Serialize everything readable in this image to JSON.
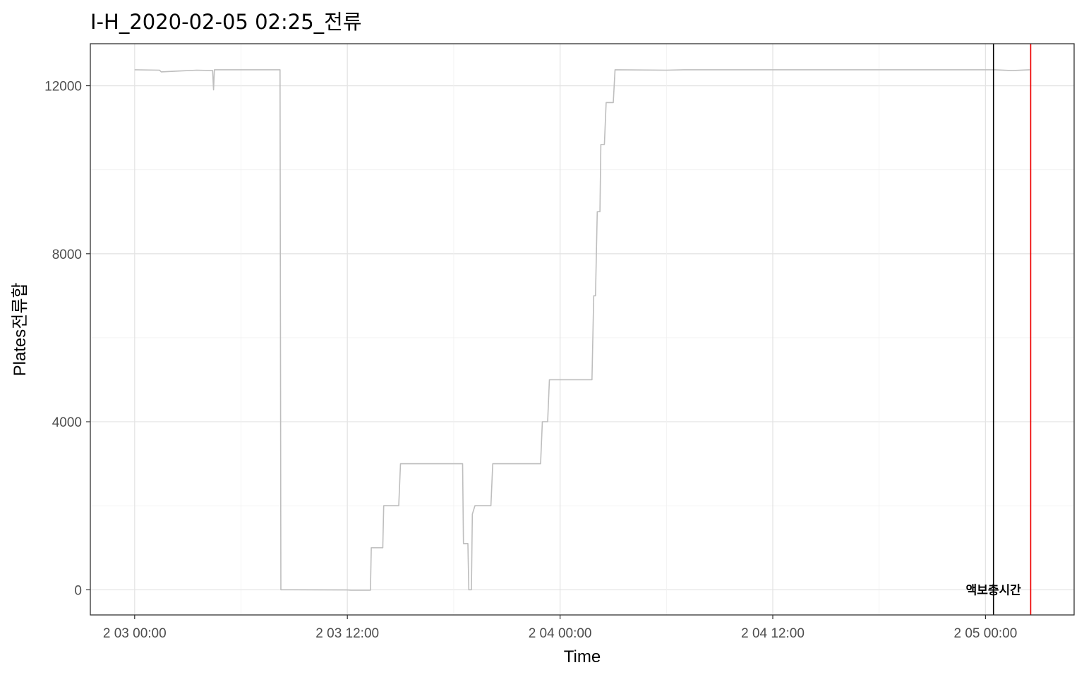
{
  "chart_data": {
    "type": "line",
    "title": "I-H_2020-02-05 02:25_전류",
    "xlabel": "Time",
    "ylabel": "Plates전류합",
    "x_tick_labels": [
      {
        "value": 0,
        "label": "2 03 00:00"
      },
      {
        "value": 12,
        "label": "2 03 12:00"
      },
      {
        "value": 24,
        "label": "2 04 00:00"
      },
      {
        "value": 36,
        "label": "2 04 12:00"
      },
      {
        "value": 48,
        "label": "2 05 00:00"
      }
    ],
    "y_ticks": [
      0,
      4000,
      8000,
      12000
    ],
    "xlim": [
      -2.5,
      53.0
    ],
    "ylim": [
      -600,
      13000
    ],
    "x_unit": "hours since 2 03 00:00",
    "grid": true,
    "series": [
      {
        "color": "#bebebe",
        "points": [
          [
            0,
            12380
          ],
          [
            1.4,
            12370
          ],
          [
            1.5,
            12330
          ],
          [
            2.5,
            12350
          ],
          [
            3.5,
            12370
          ],
          [
            4.4,
            12360
          ],
          [
            4.45,
            11900
          ],
          [
            4.5,
            12380
          ],
          [
            6.0,
            12380
          ],
          [
            8.2,
            12380
          ],
          [
            8.25,
            0
          ],
          [
            9.0,
            0
          ],
          [
            12.0,
            -5
          ],
          [
            12.2,
            -10
          ],
          [
            13.3,
            -10
          ],
          [
            13.35,
            1000
          ],
          [
            14.0,
            1000
          ],
          [
            14.05,
            2000
          ],
          [
            14.9,
            2000
          ],
          [
            15.0,
            3000
          ],
          [
            18.5,
            3000
          ],
          [
            18.55,
            1100
          ],
          [
            18.8,
            1100
          ],
          [
            18.85,
            0
          ],
          [
            19.0,
            0
          ],
          [
            19.05,
            1800
          ],
          [
            19.2,
            2000
          ],
          [
            20.1,
            2000
          ],
          [
            20.2,
            3000
          ],
          [
            22.9,
            3000
          ],
          [
            23.0,
            4000
          ],
          [
            23.3,
            4000
          ],
          [
            23.4,
            5000
          ],
          [
            25.8,
            5000
          ],
          [
            25.9,
            7000
          ],
          [
            26.0,
            7000
          ],
          [
            26.1,
            9000
          ],
          [
            26.25,
            9000
          ],
          [
            26.3,
            10600
          ],
          [
            26.5,
            10600
          ],
          [
            26.6,
            11600
          ],
          [
            27.0,
            11600
          ],
          [
            27.1,
            12380
          ],
          [
            30.0,
            12370
          ],
          [
            31.0,
            12380
          ],
          [
            40.0,
            12380
          ],
          [
            48.5,
            12380
          ],
          [
            49.5,
            12360
          ],
          [
            50.5,
            12380
          ]
        ]
      }
    ],
    "vlines": [
      {
        "x": 48.45,
        "color": "#000000"
      },
      {
        "x": 50.55,
        "color": "#ee0000"
      }
    ],
    "annotations": [
      {
        "x": 48.45,
        "y": 0,
        "text": "액보충시간"
      }
    ]
  }
}
